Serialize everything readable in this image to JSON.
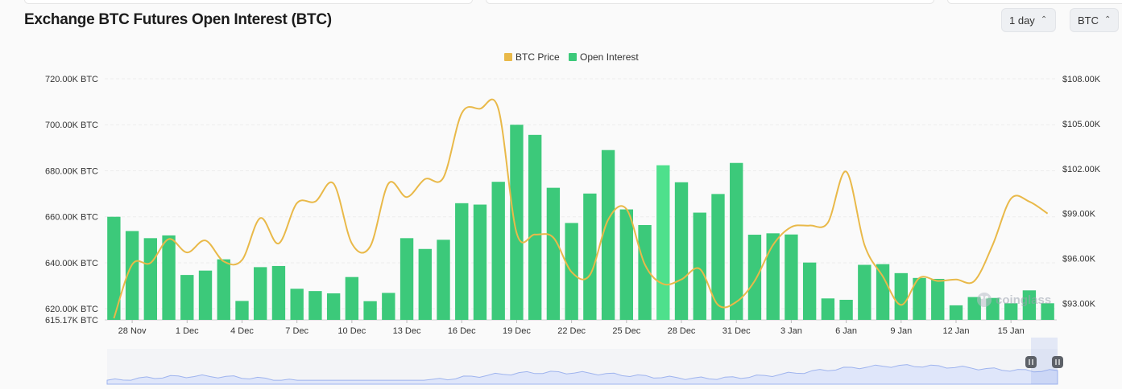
{
  "header": {
    "title": "Exchange BTC Futures Open Interest (BTC)",
    "interval": "1 day",
    "unit": "BTC"
  },
  "icons": {
    "select_chevron": "chevron-up-down-icon",
    "watermark": "coinglass-logo-icon"
  },
  "watermark": "coinglass",
  "colors": {
    "bar": "#3cc97a",
    "bar_highlight": "#4ee08c",
    "price": "#e9b949",
    "navigator": "#9fb4ee"
  },
  "chart_data": {
    "type": "bar",
    "title": "Exchange BTC Futures Open Interest (BTC)",
    "legend": {
      "placement": "top-center",
      "items": [
        "BTC Price",
        "Open Interest"
      ]
    },
    "grid": true,
    "x_tick_labels": [
      "28 Nov",
      "1 Dec",
      "4 Dec",
      "7 Dec",
      "10 Dec",
      "13 Dec",
      "16 Dec",
      "19 Dec",
      "22 Dec",
      "25 Dec",
      "28 Dec",
      "31 Dec",
      "3 Jan",
      "6 Jan",
      "9 Jan",
      "12 Jan",
      "15 Jan"
    ],
    "y_left": {
      "ticks": [
        615.17,
        620,
        640,
        660,
        680,
        700,
        720
      ],
      "tick_labels": [
        "615.17K BTC",
        "620.00K BTC",
        "640.00K BTC",
        "660.00K BTC",
        "680.00K BTC",
        "700.00K BTC",
        "720.00K BTC"
      ],
      "range": [
        615.17,
        720
      ]
    },
    "y_right": {
      "ticks": [
        93,
        96,
        99,
        102,
        105,
        108
      ],
      "tick_labels": [
        "$93.00K",
        "$96.00K",
        "$99.00K",
        "$102.00K",
        "$105.00K",
        "$108.00K"
      ],
      "range": [
        91.9,
        108
      ]
    },
    "categories": [
      "27 Nov",
      "28 Nov",
      "29 Nov",
      "30 Nov",
      "1 Dec",
      "2 Dec",
      "3 Dec",
      "4 Dec",
      "5 Dec",
      "6 Dec",
      "7 Dec",
      "8 Dec",
      "9 Dec",
      "10 Dec",
      "11 Dec",
      "12 Dec",
      "13 Dec",
      "14 Dec",
      "15 Dec",
      "16 Dec",
      "17 Dec",
      "18 Dec",
      "19 Dec",
      "20 Dec",
      "21 Dec",
      "22 Dec",
      "23 Dec",
      "24 Dec",
      "25 Dec",
      "26 Dec",
      "27 Dec",
      "28 Dec",
      "29 Dec",
      "30 Dec",
      "31 Dec",
      "1 Jan",
      "2 Jan",
      "3 Jan",
      "4 Jan",
      "5 Jan",
      "6 Jan",
      "7 Jan",
      "8 Jan",
      "9 Jan",
      "10 Jan",
      "11 Jan",
      "12 Jan",
      "13 Jan",
      "14 Jan",
      "15 Jan",
      "16 Jan",
      "17 Jan"
    ],
    "series": [
      {
        "name": "Open Interest",
        "type": "bar",
        "axis": "left",
        "values": [
          660.0,
          653.8,
          650.7,
          651.9,
          634.7,
          636.6,
          641.5,
          623.4,
          638.1,
          638.6,
          628.7,
          627.7,
          626.7,
          633.8,
          623.3,
          626.9,
          650.7,
          646.0,
          650.0,
          665.9,
          665.3,
          675.2,
          700.0,
          695.6,
          672.6,
          657.3,
          670.1,
          689.0,
          663.2,
          656.4,
          682.4,
          675.0,
          661.8,
          669.9,
          683.4,
          652.2,
          652.8,
          652.3,
          640.1,
          624.5,
          623.9,
          639.1,
          639.4,
          635.5,
          633.4,
          633.0,
          621.5,
          625.1,
          624.7,
          622.4,
          628.0,
          622.4
        ],
        "highlighted_index": 30
      },
      {
        "name": "BTC Price",
        "type": "line",
        "axis": "right",
        "values": [
          92.0,
          95.6,
          95.7,
          97.3,
          96.4,
          97.2,
          95.8,
          95.9,
          98.7,
          97.0,
          99.7,
          99.8,
          101.0,
          97.0,
          96.8,
          101.0,
          100.1,
          101.3,
          101.4,
          105.7,
          106.0,
          106.0,
          97.7,
          97.6,
          97.4,
          95.1,
          94.9,
          98.6,
          99.3,
          95.6,
          94.3,
          94.6,
          95.3,
          92.9,
          93.1,
          94.5,
          96.9,
          98.1,
          98.2,
          98.4,
          101.8,
          96.9,
          94.8,
          92.9,
          94.7,
          94.5,
          94.6,
          94.5,
          96.9,
          100.0,
          99.8,
          99.0
        ]
      }
    ]
  }
}
